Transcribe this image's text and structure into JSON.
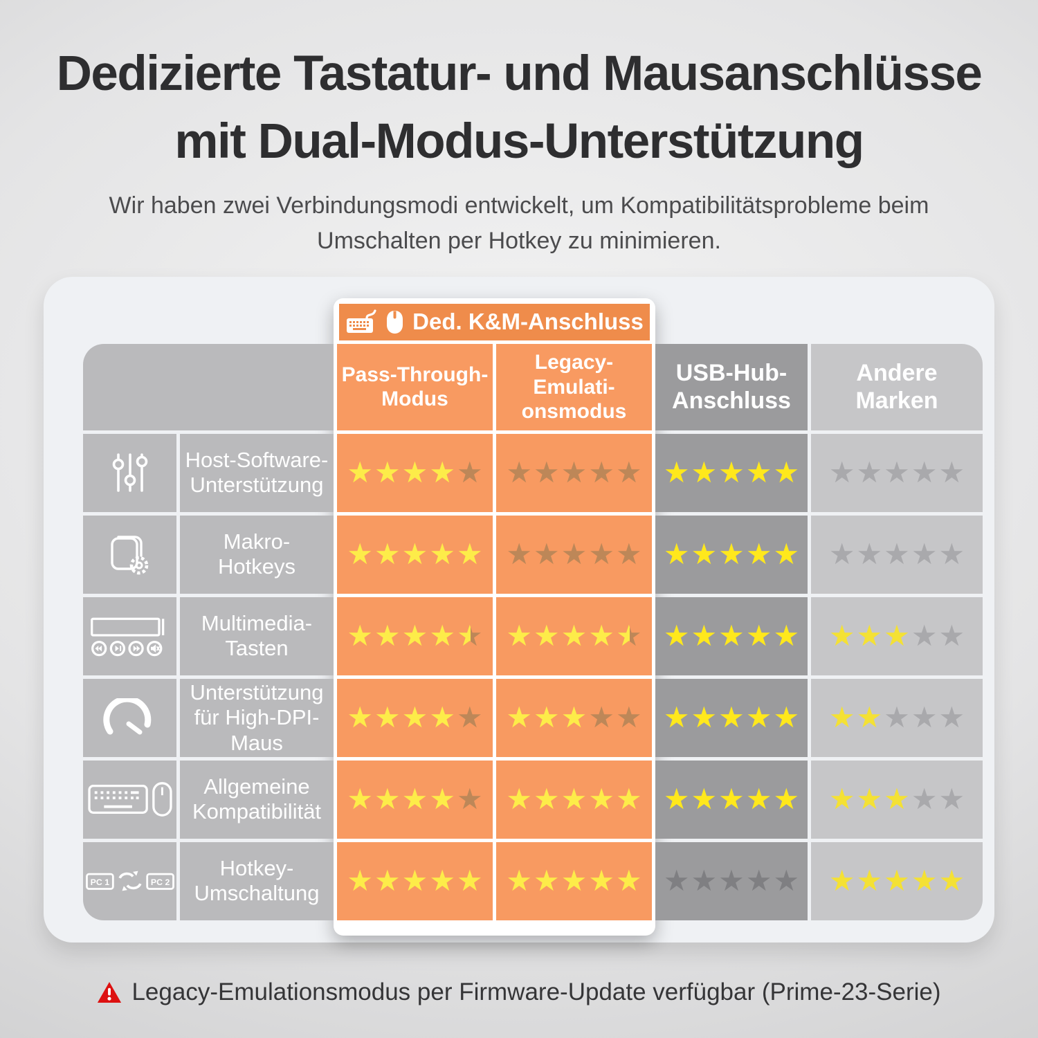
{
  "title_line1": "Dedizierte Tastatur- und Mausanschlüsse",
  "title_line2": "mit Dual-Modus-Unterstützung",
  "subtitle": "Wir haben zwei Verbindungsmodi entwickelt, um Kompatibilitätsprobleme beim\nUmschalten per Hotkey zu minimieren.",
  "table": {
    "group_header": "Ded. K&M-Anschluss",
    "col_headers": {
      "pass": "Pass-Through-\nModus",
      "legacy": "Legacy-\nEmulati-\nonsmodus",
      "usb": "USB-Hub-\nAnschluss",
      "other": "Andere\nMarken"
    },
    "pc_labels": [
      "PC 1",
      "PC 2"
    ],
    "rows": [
      {
        "icon": "sliders-icon",
        "label": "Host-Software-\nUnterstützung",
        "ratings": {
          "pass": 4,
          "legacy": 0,
          "usb": 5,
          "other": 0
        }
      },
      {
        "icon": "macro-gear-icon",
        "label": "Makro-\nHotkeys",
        "ratings": {
          "pass": 5,
          "legacy": 0,
          "usb": 5,
          "other": 0
        }
      },
      {
        "icon": "media-keys-icon",
        "label": "Multimedia-\nTasten",
        "ratings": {
          "pass": 4.5,
          "legacy": 4.5,
          "usb": 5,
          "other": 3
        }
      },
      {
        "icon": "speedometer-icon",
        "label": "Unterstützung\nfür High-DPI-\nMaus",
        "ratings": {
          "pass": 4,
          "legacy": 3,
          "usb": 5,
          "other": 2
        }
      },
      {
        "icon": "keyboard-mouse-icon",
        "label": "Allgemeine\nKompatibilität",
        "ratings": {
          "pass": 4,
          "legacy": 5,
          "usb": 5,
          "other": 3
        }
      },
      {
        "icon": "pc-switch-icon",
        "label": "Hotkey-\nUmschaltung",
        "ratings": {
          "pass": 5,
          "legacy": 5,
          "usb": 0,
          "other": 5
        }
      }
    ],
    "max_stars": 5
  },
  "footer": {
    "icon": "warning-icon",
    "note": "Legacy-Emulationsmodus per Firmware-Update verfügbar (Prime-23-Serie)"
  },
  "colors": {
    "band_orange": "#ef8c4b",
    "cell_orange": "#f89a61",
    "label_gray": "#bababc",
    "usb_col_gray": "#9b9b9d",
    "other_col_gray": "#c6c6c8",
    "star_yellow_on_orange": "#fdec49",
    "star_muted_on_orange": "#bd8758",
    "star_yellow_on_dark": "#ffe81c",
    "star_muted_on_dark": "#7f7f82",
    "star_yellow_on_light": "#f4e134",
    "star_muted_on_light": "#a9a9ac",
    "warning_red": "#dd1111"
  },
  "chart_data": {
    "type": "table",
    "title": "Dedizierte Tastatur- und Mausanschlüsse mit Dual-Modus-Unterstützung",
    "columns": [
      "Pass-Through-Modus",
      "Legacy-Emulationsmodus",
      "USB-Hub-Anschluss",
      "Andere Marken"
    ],
    "column_group": {
      "label": "Ded. K&M-Anschluss",
      "spans": [
        "Pass-Through-Modus",
        "Legacy-Emulationsmodus"
      ]
    },
    "rows": [
      "Host-Software-Unterstützung",
      "Makro-Hotkeys",
      "Multimedia-Tasten",
      "Unterstützung für High-DPI-Maus",
      "Allgemeine Kompatibilität",
      "Hotkey-Umschaltung"
    ],
    "values_stars_out_of_5": [
      [
        4,
        0,
        5,
        0
      ],
      [
        5,
        0,
        5,
        0
      ],
      [
        4.5,
        4.5,
        5,
        3
      ],
      [
        4,
        3,
        5,
        2
      ],
      [
        4,
        5,
        5,
        3
      ],
      [
        5,
        5,
        0,
        5
      ]
    ],
    "footnote": "Legacy-Emulationsmodus per Firmware-Update verfügbar (Prime-23-Serie)"
  }
}
